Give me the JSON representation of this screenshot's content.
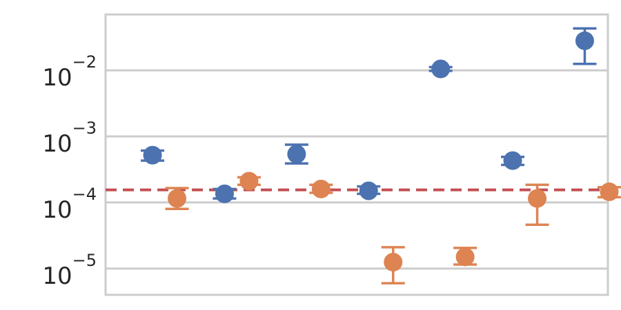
{
  "chart_data": {
    "type": "scatter",
    "y_scale": "log",
    "ylim": [
      4e-06,
      0.07
    ],
    "grid": "horizontal",
    "legend": "none",
    "y_ticks": [
      {
        "value": 1e-05,
        "base": "10",
        "exp": "−5"
      },
      {
        "value": 0.0001,
        "base": "10",
        "exp": "−4"
      },
      {
        "value": 0.001,
        "base": "10",
        "exp": "−3"
      },
      {
        "value": 0.01,
        "base": "10",
        "exp": "−2"
      }
    ],
    "x_categories": 7,
    "reference_line": {
      "value": 0.000155,
      "style": "dashed",
      "color": "#c44e52"
    },
    "series": [
      {
        "color": "#4c72b0",
        "offset": -0.17,
        "points": [
          {
            "x": 0,
            "y": 0.00052,
            "lo": 0.00043,
            "hi": 0.00061
          },
          {
            "x": 1,
            "y": 0.000135,
            "lo": 0.000115,
            "hi": 0.00016
          },
          {
            "x": 2,
            "y": 0.00054,
            "lo": 0.00039,
            "hi": 0.00075
          },
          {
            "x": 3,
            "y": 0.00015,
            "lo": 0.000135,
            "hi": 0.000175
          },
          {
            "x": 4,
            "y": 0.0105,
            "lo": 0.0098,
            "hi": 0.0112
          },
          {
            "x": 5,
            "y": 0.00043,
            "lo": 0.00037,
            "hi": 0.00049
          },
          {
            "x": 6,
            "y": 0.028,
            "lo": 0.0125,
            "hi": 0.043
          }
        ]
      },
      {
        "color": "#dd8452",
        "offset": 0.17,
        "points": [
          {
            "x": 0,
            "y": 0.000115,
            "lo": 8e-05,
            "hi": 0.000165
          },
          {
            "x": 1,
            "y": 0.00021,
            "lo": 0.000185,
            "hi": 0.00024
          },
          {
            "x": 2,
            "y": 0.00016,
            "lo": 0.00014,
            "hi": 0.000185
          },
          {
            "x": 3,
            "y": 1.25e-05,
            "lo": 6e-06,
            "hi": 2.1e-05
          },
          {
            "x": 4,
            "y": 1.5e-05,
            "lo": 1.15e-05,
            "hi": 2.05e-05
          },
          {
            "x": 5,
            "y": 0.000115,
            "lo": 4.6e-05,
            "hi": 0.000185
          },
          {
            "x": 6,
            "y": 0.000145,
            "lo": 0.00012,
            "hi": 0.00017
          }
        ]
      }
    ]
  }
}
